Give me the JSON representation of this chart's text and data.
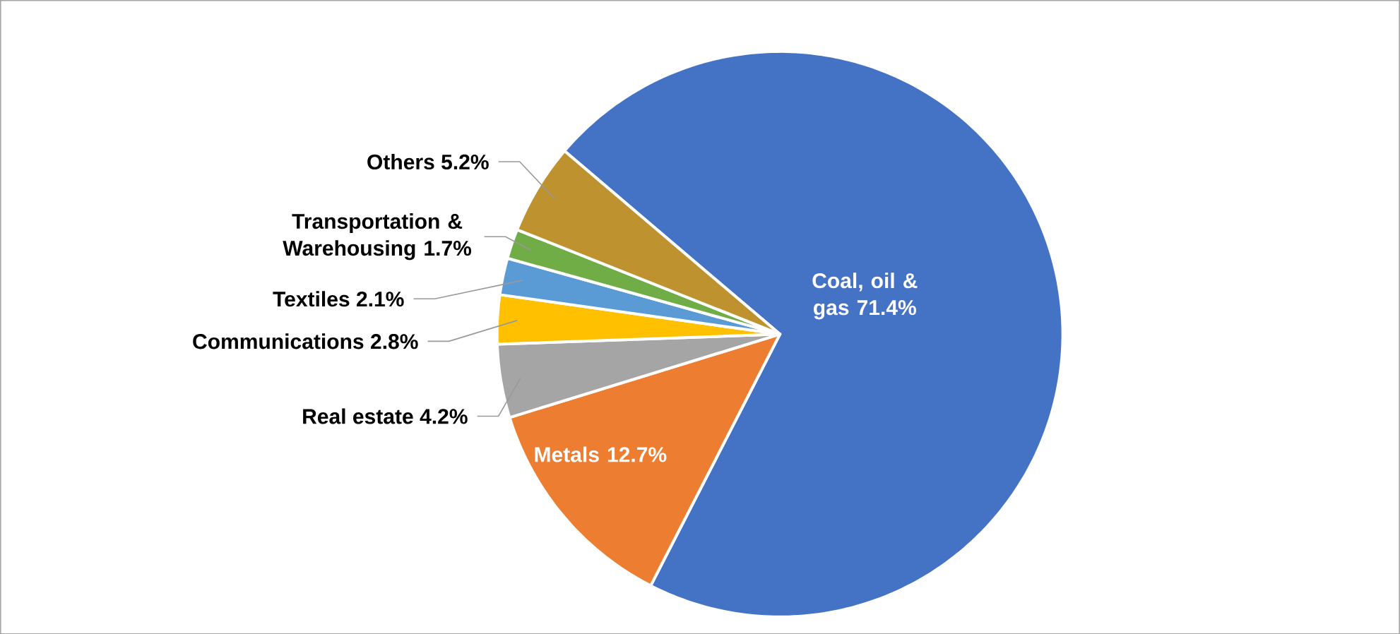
{
  "chart_data": {
    "type": "pie",
    "categories": [
      "Coal, oil & gas",
      "Metals",
      "Real estate",
      "Communications",
      "Textiles",
      "Transportation & Warehousing",
      "Others"
    ],
    "values": [
      71.4,
      12.7,
      4.2,
      2.8,
      2.1,
      1.7,
      5.2
    ],
    "value_labels": [
      "71.4%",
      "12.7%",
      "4.2%",
      "2.8%",
      "2.1%",
      "1.7%",
      "5.2%"
    ],
    "colors": [
      "#4472c4",
      "#ed7d31",
      "#a5a5a5",
      "#ffc000",
      "#5b9bd5",
      "#70ad47",
      "#bf9230"
    ]
  }
}
